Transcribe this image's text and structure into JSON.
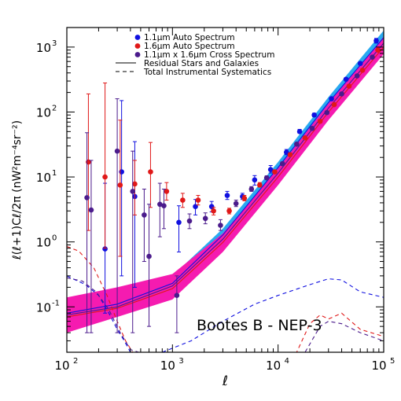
{
  "chart_data": {
    "type": "scatter",
    "title": "",
    "xlabel": "ℓ",
    "ylabel": "ℓ(ℓ+1)Cℓ/2π (nW²m⁻⁴sr⁻²)",
    "annotation": "Bootes B - NEP-3",
    "xscale": "log",
    "yscale": "log",
    "xlim": [
      100,
      100000
    ],
    "ylim": [
      0.02,
      2000
    ],
    "x_ticks": [
      {
        "v": 100,
        "label": "10",
        "exp": "2"
      },
      {
        "v": 1000,
        "label": "10",
        "exp": "3"
      },
      {
        "v": 10000,
        "label": "10",
        "exp": "4"
      },
      {
        "v": 100000,
        "label": "10",
        "exp": "5"
      }
    ],
    "y_ticks": [
      {
        "v": 0.1,
        "label": "10",
        "exp": "-1"
      },
      {
        "v": 1,
        "label": "10",
        "exp": "0"
      },
      {
        "v": 10,
        "label": "10",
        "exp": "1"
      },
      {
        "v": 100,
        "label": "10",
        "exp": "2"
      },
      {
        "v": 1000,
        "label": "10",
        "exp": "3"
      }
    ],
    "legend_position": "top-center",
    "legend": [
      {
        "name": "1.1μm Auto Spectrum",
        "kind": "dot",
        "color": "#1010e0"
      },
      {
        "name": "1.6μm Auto Spectrum",
        "kind": "dot",
        "color": "#e01818"
      },
      {
        "name": "1.1μm x 1.6μm Cross Spectrum",
        "kind": "dot",
        "color": "#4b1b8c"
      },
      {
        "name": "Residual Stars and Galaxies",
        "kind": "solid",
        "color": "#000000"
      },
      {
        "name": "Total Instrumental Systematics",
        "kind": "dashed",
        "color": "#000000"
      }
    ],
    "series": [
      {
        "name": "1.1μm Auto Spectrum",
        "color": "#1010e0",
        "points": [
          {
            "x": 230,
            "y": 0.78,
            "lo": 0.08,
            "hi": 8.0
          },
          {
            "x": 330,
            "y": 12.0,
            "lo": 0.3,
            "hi": 150
          },
          {
            "x": 440,
            "y": 5.0,
            "lo": 0.2,
            "hi": 35
          },
          {
            "x": 1150,
            "y": 2.0,
            "lo": 0.7,
            "hi": 3.6
          },
          {
            "x": 1650,
            "y": 3.5,
            "lo": 2.6,
            "hi": 4.5
          },
          {
            "x": 2350,
            "y": 3.5,
            "lo": 2.9,
            "hi": 4.2
          },
          {
            "x": 3300,
            "y": 5.2,
            "lo": 4.5,
            "hi": 6.0
          },
          {
            "x": 4600,
            "y": 5.0,
            "lo": 4.5,
            "hi": 5.6
          },
          {
            "x": 6000,
            "y": 9.0,
            "lo": 7.5,
            "hi": 10.5
          },
          {
            "x": 8500,
            "y": 13.0,
            "lo": 11.5,
            "hi": 15.0
          },
          {
            "x": 12000,
            "y": 24.0,
            "lo": 22,
            "hi": 26.5
          },
          {
            "x": 16000,
            "y": 50.0,
            "lo": 47,
            "hi": 54
          },
          {
            "x": 22000,
            "y": 90.0,
            "lo": 85,
            "hi": 96
          },
          {
            "x": 32000,
            "y": 160.0,
            "lo": 152,
            "hi": 168
          },
          {
            "x": 44000,
            "y": 320.0,
            "lo": 305,
            "hi": 335
          },
          {
            "x": 60000,
            "y": 560.0,
            "lo": 530,
            "hi": 590
          },
          {
            "x": 85000,
            "y": 1250.0,
            "lo": 1150,
            "hi": 1360
          }
        ]
      },
      {
        "name": "1.6μm Auto Spectrum",
        "color": "#e01818",
        "points": [
          {
            "x": 160,
            "y": 17.0,
            "lo": 1.5,
            "hi": 190
          },
          {
            "x": 230,
            "y": 10.0,
            "lo": 0.8,
            "hi": 280
          },
          {
            "x": 320,
            "y": 7.5,
            "lo": 0.6,
            "hi": 75
          },
          {
            "x": 440,
            "y": 7.8,
            "lo": 2.6,
            "hi": 18
          },
          {
            "x": 620,
            "y": 12.0,
            "lo": 3.4,
            "hi": 34
          },
          {
            "x": 880,
            "y": 6.0,
            "lo": 4.4,
            "hi": 8.2
          },
          {
            "x": 1250,
            "y": 4.4,
            "lo": 3.4,
            "hi": 5.6
          },
          {
            "x": 1750,
            "y": 4.4,
            "lo": 3.7,
            "hi": 5.2
          },
          {
            "x": 2450,
            "y": 3.0,
            "lo": 2.6,
            "hi": 3.4
          },
          {
            "x": 3450,
            "y": 3.0,
            "lo": 2.7,
            "hi": 3.3
          },
          {
            "x": 4800,
            "y": 4.7,
            "lo": 4.3,
            "hi": 5.2
          },
          {
            "x": 6700,
            "y": 7.5,
            "lo": 7.0,
            "hi": 8.2
          },
          {
            "x": 9300,
            "y": 12.0,
            "lo": 11.3,
            "hi": 12.8
          },
          {
            "x": 13000,
            "y": 22.0,
            "lo": 21,
            "hi": 23.5
          },
          {
            "x": 18000,
            "y": 40.0,
            "lo": 38,
            "hi": 42
          },
          {
            "x": 25000,
            "y": 72.0,
            "lo": 69,
            "hi": 76
          },
          {
            "x": 34000,
            "y": 130.0,
            "lo": 125,
            "hi": 136
          },
          {
            "x": 47000,
            "y": 250.0,
            "lo": 240,
            "hi": 260
          },
          {
            "x": 63000,
            "y": 440.0,
            "lo": 425,
            "hi": 460
          },
          {
            "x": 88000,
            "y": 900.0,
            "lo": 860,
            "hi": 940
          }
        ]
      },
      {
        "name": "1.1μm x 1.6μm Cross Spectrum",
        "color": "#4b1b8c",
        "points": [
          {
            "x": 155,
            "y": 4.8,
            "lo": 0.04,
            "hi": 48
          },
          {
            "x": 170,
            "y": 3.1,
            "lo": 0.04,
            "hi": 18
          },
          {
            "x": 300,
            "y": 25.0,
            "lo": 0.04,
            "hi": 160
          },
          {
            "x": 420,
            "y": 6.0,
            "lo": 0.04,
            "hi": 25
          },
          {
            "x": 540,
            "y": 2.6,
            "lo": 0.5,
            "hi": 6.5
          },
          {
            "x": 600,
            "y": 0.6,
            "lo": 0.05,
            "hi": 3.8
          },
          {
            "x": 760,
            "y": 3.8,
            "lo": 1.2,
            "hi": 8.0
          },
          {
            "x": 830,
            "y": 3.6,
            "lo": 1.6,
            "hi": 6.5
          },
          {
            "x": 1100,
            "y": 0.15,
            "lo": 0.04,
            "hi": 0.3
          },
          {
            "x": 1450,
            "y": 2.1,
            "lo": 1.6,
            "hi": 2.7
          },
          {
            "x": 2050,
            "y": 2.3,
            "lo": 1.9,
            "hi": 2.8
          },
          {
            "x": 2850,
            "y": 1.8,
            "lo": 1.5,
            "hi": 2.2
          },
          {
            "x": 4000,
            "y": 3.9,
            "lo": 3.5,
            "hi": 4.4
          },
          {
            "x": 5600,
            "y": 6.5,
            "lo": 6.0,
            "hi": 7.1
          },
          {
            "x": 7800,
            "y": 9.7,
            "lo": 9.1,
            "hi": 10.4
          },
          {
            "x": 11000,
            "y": 16.0,
            "lo": 15,
            "hi": 17
          },
          {
            "x": 15000,
            "y": 32.0,
            "lo": 30,
            "hi": 34
          },
          {
            "x": 21000,
            "y": 56.0,
            "lo": 53,
            "hi": 59
          },
          {
            "x": 29000,
            "y": 98.0,
            "lo": 93,
            "hi": 103
          },
          {
            "x": 40000,
            "y": 190.0,
            "lo": 181,
            "hi": 199
          },
          {
            "x": 56000,
            "y": 360.0,
            "lo": 345,
            "hi": 376
          },
          {
            "x": 78000,
            "y": 700.0,
            "lo": 670,
            "hi": 730
          }
        ]
      }
    ],
    "bands": [
      {
        "name": "1.1μm residual band",
        "color": "#29a9f0",
        "x": [
          100,
          300,
          1000,
          3000,
          10000,
          30000,
          100000
        ],
        "lo": [
          0.06,
          0.09,
          0.18,
          1.0,
          11,
          110,
          1100
        ],
        "hi": [
          0.1,
          0.13,
          0.3,
          1.6,
          17,
          170,
          1800
        ]
      },
      {
        "name": "1.6μm residual band",
        "color": "#f51bb0",
        "x": [
          100,
          300,
          1000,
          3000,
          10000,
          30000,
          100000
        ],
        "lo": [
          0.04,
          0.07,
          0.13,
          0.7,
          7.5,
          75,
          780
        ],
        "hi": [
          0.14,
          0.2,
          0.32,
          1.35,
          13.5,
          135,
          1450
        ]
      }
    ],
    "model_lines": [
      {
        "name": "Residual Stars and Galaxies",
        "color": "#1010e0",
        "style": "solid",
        "x": [
          100,
          300,
          1000,
          3000,
          10000,
          30000,
          100000
        ],
        "y": [
          0.08,
          0.11,
          0.23,
          1.28,
          14,
          140,
          1400
        ]
      },
      {
        "name": "Residual Stars and Galaxies",
        "color": "#4b1b8c",
        "style": "solid",
        "x": [
          100,
          300,
          1000,
          3000,
          10000,
          30000,
          100000
        ],
        "y": [
          0.075,
          0.1,
          0.21,
          1.1,
          11.5,
          115,
          1150
        ]
      },
      {
        "name": "Residual Stars and Galaxies",
        "color": "#e01818",
        "style": "solid",
        "x": [
          100,
          300,
          1000,
          3000,
          10000,
          30000,
          100000
        ],
        "y": [
          0.07,
          0.095,
          0.19,
          0.98,
          10,
          100,
          1000
        ]
      },
      {
        "name": "Total Instrumental Systematics",
        "color": "#1010e0",
        "style": "dashed",
        "x": [
          100,
          150,
          200,
          250,
          300,
          350,
          400,
          800,
          1500,
          3000,
          6000,
          10000,
          20000,
          30000,
          40000,
          60000,
          100000
        ],
        "y": [
          0.3,
          0.22,
          0.15,
          0.08,
          0.045,
          0.03,
          0.02,
          0.02,
          0.03,
          0.06,
          0.11,
          0.15,
          0.22,
          0.27,
          0.26,
          0.17,
          0.14
        ]
      },
      {
        "name": "Total Instrumental Systematics",
        "color": "#e01818",
        "style": "dashed",
        "x": [
          100,
          130,
          180,
          240,
          300,
          360,
          420,
          500,
          15000,
          20000,
          25000,
          30000,
          40000,
          60000,
          100000
        ],
        "y": [
          0.85,
          0.72,
          0.4,
          0.15,
          0.06,
          0.03,
          0.02,
          0.02,
          0.02,
          0.055,
          0.075,
          0.065,
          0.08,
          0.045,
          0.035
        ]
      },
      {
        "name": "Total Instrumental Systematics",
        "color": "#4b1b8c",
        "style": "dashed",
        "x": [
          100,
          140,
          190,
          250,
          320,
          400,
          480,
          18000,
          25000,
          30000,
          40000,
          60000,
          100000
        ],
        "y": [
          0.28,
          0.25,
          0.17,
          0.09,
          0.04,
          0.022,
          0.02,
          0.02,
          0.05,
          0.06,
          0.055,
          0.04,
          0.03
        ]
      }
    ]
  }
}
